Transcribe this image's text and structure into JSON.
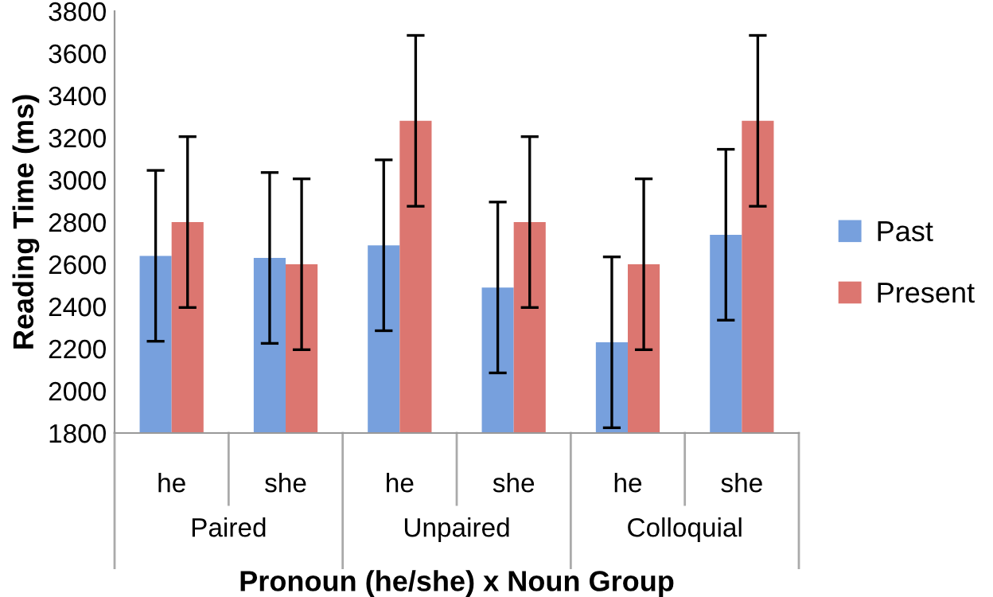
{
  "chart_data": {
    "type": "bar",
    "categories": [
      "he",
      "she",
      "he",
      "she",
      "he",
      "she"
    ],
    "annotations": [
      "Paired",
      "Unpaired",
      "Colloquial"
    ],
    "xlabel": "Pronoun (he/she) x Noun Group",
    "ylabel": "Reading Time (ms)",
    "series": [
      {
        "name": "Past",
        "color": "#77a0dd",
        "values": [
          2640,
          2630,
          2690,
          2490,
          2230,
          2740
        ],
        "errors": [
          405,
          405,
          405,
          405,
          405,
          405
        ]
      },
      {
        "name": "Present",
        "color": "#dc7670",
        "values": [
          2800,
          2600,
          3280,
          2800,
          2600,
          3280
        ],
        "errors": [
          405,
          405,
          405,
          405,
          405,
          405
        ]
      }
    ],
    "ylim": [
      1800,
      3800
    ],
    "yticks": [
      1800,
      2000,
      2200,
      2400,
      2600,
      2800,
      3000,
      3200,
      3400,
      3600,
      3800
    ],
    "grid": false,
    "legend": "right"
  }
}
